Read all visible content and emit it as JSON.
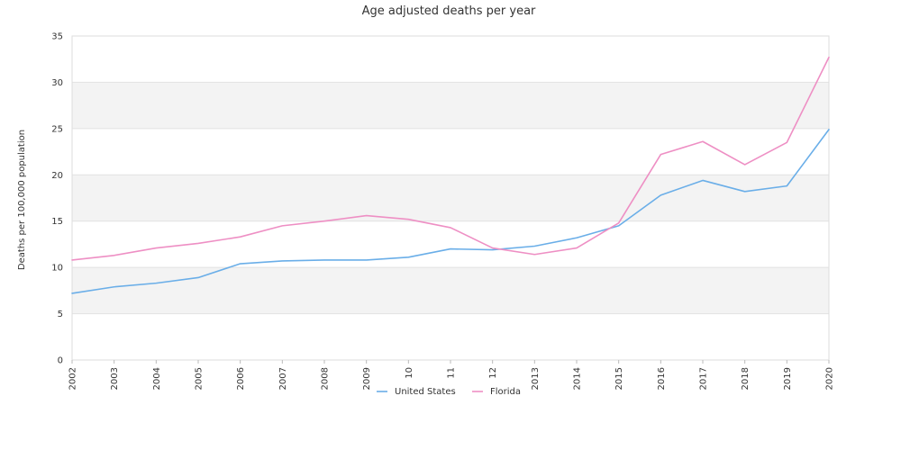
{
  "chart_data": {
    "type": "line",
    "title": "Age adjusted deaths per year",
    "xlabel": "",
    "ylabel": "Deaths per 100,000 population",
    "x": [
      "2002",
      "2003",
      "2004",
      "2005",
      "2006",
      "2007",
      "2008",
      "2009",
      "10",
      "11",
      "12",
      "2013",
      "2014",
      "2015",
      "2016",
      "2017",
      "2018",
      "2019",
      "2020"
    ],
    "ylim": [
      0,
      35
    ],
    "yticks": [
      0,
      5,
      10,
      15,
      20,
      25,
      30,
      35
    ],
    "grid": true,
    "legend_position": "bottom",
    "series": [
      {
        "name": "United States",
        "color": "#6aaee8",
        "values": [
          7.2,
          7.9,
          8.3,
          8.9,
          10.4,
          10.7,
          10.8,
          10.8,
          11.1,
          12.0,
          11.9,
          12.3,
          13.2,
          14.5,
          17.8,
          19.4,
          18.2,
          18.8,
          24.9
        ]
      },
      {
        "name": "Florida",
        "color": "#ee8fc4",
        "values": [
          10.8,
          11.3,
          12.1,
          12.6,
          13.3,
          14.5,
          15.0,
          15.6,
          15.2,
          14.3,
          12.1,
          11.4,
          12.1,
          14.8,
          22.2,
          23.6,
          21.1,
          23.5,
          32.7
        ]
      }
    ]
  }
}
